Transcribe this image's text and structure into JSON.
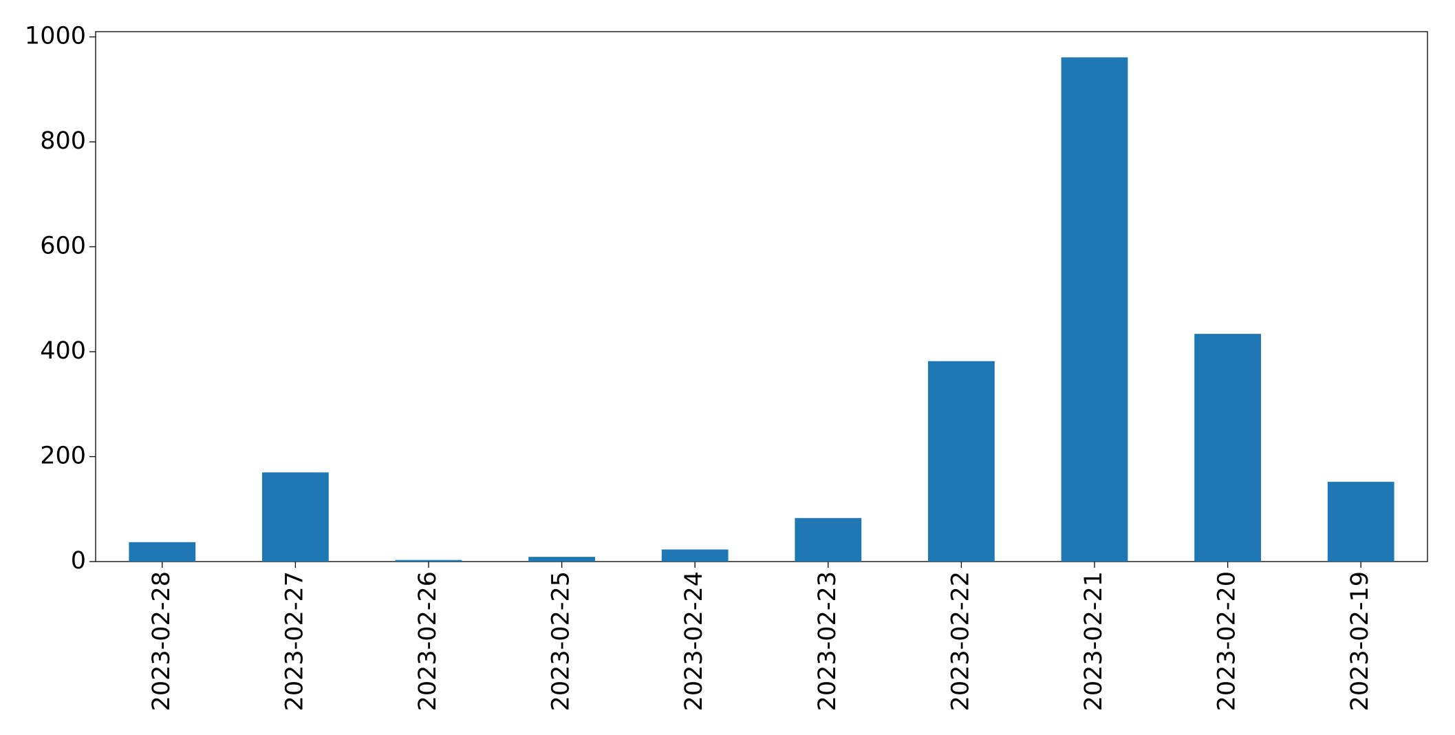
{
  "chart_data": {
    "type": "bar",
    "categories": [
      "2023-02-28",
      "2023-02-27",
      "2023-02-26",
      "2023-02-25",
      "2023-02-24",
      "2023-02-23",
      "2023-02-22",
      "2023-02-21",
      "2023-02-20",
      "2023-02-19"
    ],
    "values": [
      37,
      170,
      3,
      9,
      23,
      83,
      382,
      961,
      434,
      152
    ],
    "color": "#1f77b4",
    "ylim": [
      0,
      1010
    ],
    "yticks": [
      0,
      200,
      400,
      600,
      800,
      1000
    ],
    "grid": false
  }
}
